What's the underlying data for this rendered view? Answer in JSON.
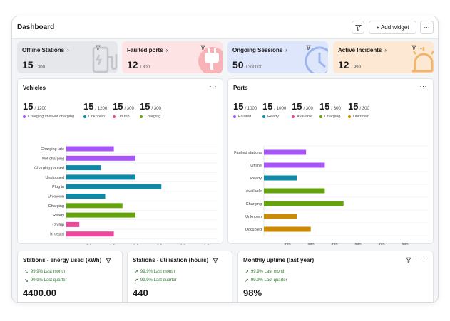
{
  "header": {
    "title": "Dashboard",
    "add_widget": "+ Add widget",
    "more": "···"
  },
  "kpis": [
    {
      "title": "Offline Stations",
      "value": "15",
      "total": "/ 300",
      "bg": "#e6e7ea",
      "icon": "ev-charger-icon"
    },
    {
      "title": "Faulted ports",
      "value": "12",
      "total": "/ 300",
      "bg": "#fde3e3",
      "icon": "plug-icon"
    },
    {
      "title": "Ongoing Sessions",
      "value": "50",
      "total": "/ 300000",
      "bg": "#dde6fb",
      "icon": "clock-icon"
    },
    {
      "title": "Active Incidents",
      "value": "12",
      "total": "/ 999",
      "bg": "#fde9d3",
      "icon": "alarm-icon"
    }
  ],
  "vehicles": {
    "title": "Vehicles",
    "stats": [
      {
        "num": "15",
        "den": "/ 1200",
        "label": "Charging idle/Not charging",
        "color": "#a855f7"
      },
      {
        "num": "15",
        "den": "/ 1200",
        "label": "Unknown",
        "color": "#0e8aa8"
      },
      {
        "num": "15",
        "den": "/ 300",
        "label": "On trip",
        "color": "#ec4899"
      },
      {
        "num": "15",
        "den": "/ 300",
        "label": "Charging",
        "color": "#65a30d"
      }
    ],
    "xlabel": "Total number of vehicles",
    "ticks": [
      "Info",
      "Info",
      "Info",
      "Info",
      "Info",
      "Info"
    ]
  },
  "ports": {
    "title": "Ports",
    "stats": [
      {
        "num": "15",
        "den": "/ 1000",
        "label": "Faulted",
        "color": "#a855f7"
      },
      {
        "num": "15",
        "den": "/ 1000",
        "label": "Ready",
        "color": "#0e8aa8"
      },
      {
        "num": "15",
        "den": "/ 300",
        "label": "Available",
        "color": "#ec4899"
      },
      {
        "num": "15",
        "den": "/ 300",
        "label": "Charging",
        "color": "#65a30d"
      },
      {
        "num": "15",
        "den": "/ 300",
        "label": "Unknown",
        "color": "#ca8a04"
      }
    ],
    "xlabel": "Total number of ports",
    "ticks": [
      "Info",
      "Info",
      "Info",
      "Info",
      "Info",
      "Info"
    ]
  },
  "chart_data": [
    {
      "type": "bar",
      "title": "Vehicles",
      "xlabel": "Total number of vehicles",
      "categories": [
        "Charging late",
        "Not charging",
        "Charging paused",
        "Unplugged",
        "Plug in",
        "Unknown",
        "Charging",
        "Ready",
        "On trip",
        "In depot"
      ],
      "values": [
        11,
        16,
        8,
        16,
        22,
        9,
        13,
        16,
        3,
        11
      ],
      "colors": [
        "#a855f7",
        "#a855f7",
        "#0e8aa8",
        "#0e8aa8",
        "#0e8aa8",
        "#0e8aa8",
        "#65a30d",
        "#65a30d",
        "#ec4899",
        "#ec4899"
      ],
      "xlim": [
        0,
        35
      ],
      "grid": true
    },
    {
      "type": "bar",
      "title": "Ports",
      "xlabel": "Total number of ports",
      "categories": [
        "Faulted stations",
        "Offline",
        "Ready",
        "Available",
        "Charging",
        "Unknown",
        "Occupied"
      ],
      "values": [
        9,
        13,
        7,
        13,
        17,
        7,
        10
      ],
      "colors": [
        "#a855f7",
        "#a855f7",
        "#0e8aa8",
        "#65a30d",
        "#65a30d",
        "#ca8a04",
        "#ca8a04"
      ],
      "xlim": [
        0,
        35
      ],
      "grid": true
    }
  ],
  "bottom": [
    {
      "title": "Stations - energy used (kWh)",
      "t1": "99.9% Last month",
      "a1": "↘",
      "t2": "99.9% Last quarter",
      "a2": "↘",
      "value": "4400.00"
    },
    {
      "title": "Stations - utilisation (hours)",
      "t1": "99.9% Last month",
      "a1": "↗",
      "t2": "99.9% Last quarter",
      "a2": "↗",
      "value": "440"
    },
    {
      "title": "Monthly uptime (last year)",
      "t1": "99.9% Last month",
      "a1": "↗",
      "t2": "99.9% Last quarter",
      "a2": "↗",
      "value": "98%"
    }
  ]
}
